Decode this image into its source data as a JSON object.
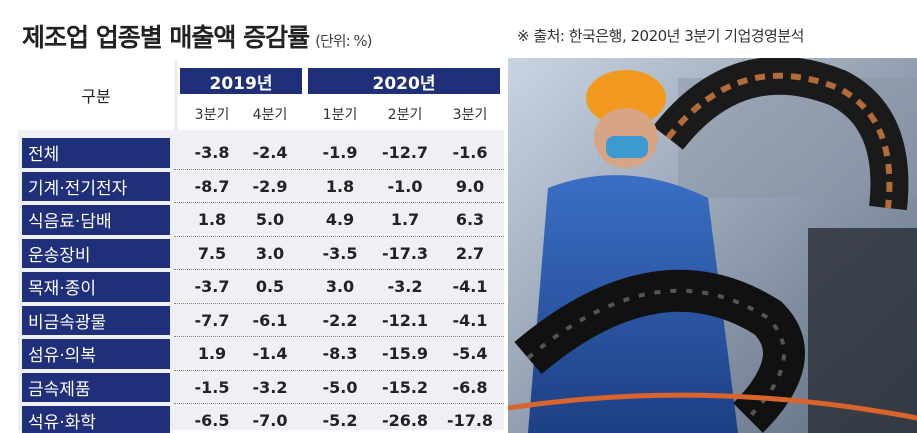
{
  "header": {
    "title": "제조업 업종별 매출액 증감률",
    "unit": "(단위: %)",
    "source": "※ 출처: 한국은행, 2020년 3분기 기업경영분석"
  },
  "table": {
    "corner": "구분",
    "years": [
      "2019년",
      "2020년"
    ],
    "quarters": [
      "3분기",
      "4분기",
      "1분기",
      "2분기",
      "3분기"
    ],
    "rows": [
      [
        "전체",
        "-3.8",
        "-2.4",
        "-1.9",
        "-12.7",
        "-1.6"
      ],
      [
        "기계·전기전자",
        "-8.7",
        "-2.9",
        "1.8",
        "-1.0",
        "9.0"
      ],
      [
        "식음료·담배",
        "1.8",
        "5.0",
        "4.9",
        "1.7",
        "6.3"
      ],
      [
        "운송장비",
        "7.5",
        "3.0",
        "-3.5",
        "-17.3",
        "2.7"
      ],
      [
        "목재·종이",
        "-3.7",
        "0.5",
        "3.0",
        "-3.2",
        "-4.1"
      ],
      [
        "비금속광물",
        "-7.7",
        "-6.1",
        "-2.2",
        "-12.1",
        "-4.1"
      ],
      [
        "섬유·의복",
        "1.9",
        "-1.4",
        "-8.3",
        "-15.9",
        "-5.4"
      ],
      [
        "금속제품",
        "-1.5",
        "-3.2",
        "-5.0",
        "-15.2",
        "-6.8"
      ],
      [
        "석유·화학",
        "-6.5",
        "-7.0",
        "-5.2",
        "-26.8",
        "-17.8"
      ]
    ]
  }
}
